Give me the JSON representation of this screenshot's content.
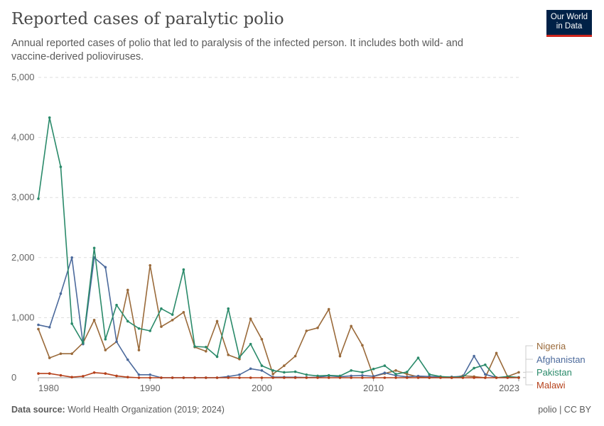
{
  "header": {
    "title": "Reported cases of paralytic polio",
    "subtitle": "Annual reported cases of polio that led to paralysis of the infected person. It includes both wild- and vaccine-derived polioviruses.",
    "logo_line1": "Our World",
    "logo_line2": "in Data"
  },
  "footer": {
    "source_label": "Data source:",
    "source_text": "World Health Organization (2019; 2024)",
    "license": "polio | CC BY"
  },
  "chart_data": {
    "type": "line",
    "title": "Reported cases of paralytic polio",
    "xlabel": "",
    "ylabel": "",
    "xlim": [
      1980,
      2023
    ],
    "ylim": [
      0,
      5000
    ],
    "yticks": [
      0,
      1000,
      2000,
      3000,
      4000,
      5000
    ],
    "ytick_labels": [
      "0",
      "1,000",
      "2,000",
      "3,000",
      "4,000",
      "5,000"
    ],
    "xticks": [
      1980,
      1990,
      2000,
      2010,
      2023
    ],
    "xtick_labels": [
      "1980",
      "1990",
      "2000",
      "2010",
      "2023"
    ],
    "grid": true,
    "legend_placement": "right",
    "x": [
      1980,
      1981,
      1982,
      1983,
      1984,
      1985,
      1986,
      1987,
      1988,
      1989,
      1990,
      1991,
      1992,
      1993,
      1994,
      1995,
      1996,
      1997,
      1998,
      1999,
      2000,
      2001,
      2002,
      2003,
      2004,
      2005,
      2006,
      2007,
      2008,
      2009,
      2010,
      2011,
      2012,
      2013,
      2014,
      2015,
      2016,
      2017,
      2018,
      2019,
      2020,
      2021,
      2022,
      2023
    ],
    "series": [
      {
        "name": "Nigeria",
        "color": "#9a6a3a",
        "values": [
          810,
          330,
          400,
          400,
          580,
          960,
          460,
          600,
          1460,
          460,
          1870,
          850,
          960,
          1090,
          510,
          440,
          940,
          380,
          310,
          980,
          640,
          60,
          200,
          360,
          780,
          830,
          1140,
          360,
          860,
          540,
          20,
          70,
          120,
          60,
          15,
          0,
          4,
          0,
          34,
          18,
          0,
          410,
          20,
          90
        ]
      },
      {
        "name": "Afghanistan",
        "color": "#4c6a9c",
        "values": [
          880,
          840,
          1400,
          2000,
          560,
          2000,
          1840,
          600,
          300,
          50,
          50,
          0,
          0,
          0,
          0,
          0,
          0,
          20,
          50,
          150,
          120,
          10,
          10,
          8,
          4,
          9,
          31,
          17,
          31,
          38,
          25,
          80,
          37,
          14,
          28,
          20,
          13,
          14,
          21,
          360,
          56,
          4,
          2,
          6
        ]
      },
      {
        "name": "Pakistan",
        "color": "#2a8a6a",
        "values": [
          2980,
          4330,
          3510,
          900,
          580,
          2160,
          640,
          1210,
          940,
          820,
          780,
          1150,
          1050,
          1800,
          520,
          510,
          350,
          1150,
          340,
          560,
          200,
          120,
          90,
          100,
          50,
          30,
          40,
          30,
          120,
          90,
          145,
          200,
          60,
          95,
          330,
          55,
          20,
          8,
          12,
          160,
          215,
          1,
          20,
          6
        ]
      },
      {
        "name": "Malawi",
        "color": "#b5401a",
        "values": [
          70,
          70,
          40,
          10,
          25,
          85,
          70,
          30,
          10,
          0,
          0,
          0,
          0,
          0,
          0,
          0,
          0,
          0,
          0,
          0,
          0,
          0,
          0,
          0,
          0,
          0,
          0,
          0,
          0,
          0,
          0,
          0,
          0,
          0,
          0,
          0,
          0,
          0,
          0,
          0,
          0,
          0,
          0,
          0
        ]
      }
    ]
  }
}
